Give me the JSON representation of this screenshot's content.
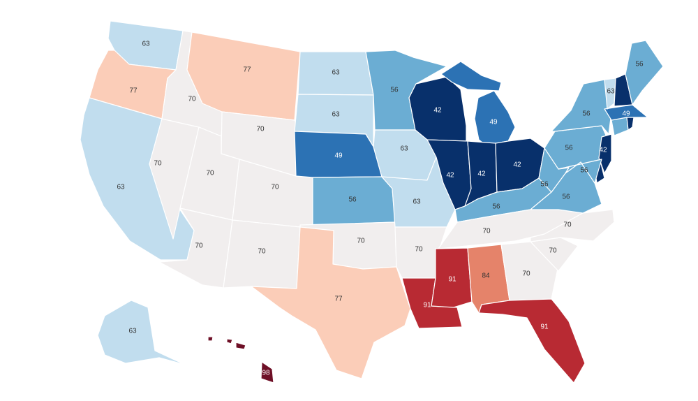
{
  "palette": {
    "42": "#08306b",
    "49": "#2c72b4",
    "56": "#6badd3",
    "63": "#c1ddee",
    "70": "#f1eeee",
    "77": "#fbcdb8",
    "84": "#e5836a",
    "91": "#b82a33",
    "98": "#6e0f26"
  },
  "light_text_color": "#ffffff",
  "dark_text_color": "#333333",
  "states": [
    {
      "id": "WA",
      "value": 63,
      "label": "63",
      "labeled": true
    },
    {
      "id": "OR",
      "value": 77,
      "label": "77",
      "labeled": true
    },
    {
      "id": "CA",
      "value": 63,
      "label": "63",
      "labeled": true
    },
    {
      "id": "NV",
      "value": 70,
      "label": "70",
      "labeled": true
    },
    {
      "id": "ID",
      "value": 70,
      "label": "70",
      "labeled": true
    },
    {
      "id": "MT",
      "value": 77,
      "label": "77",
      "labeled": true
    },
    {
      "id": "WY",
      "value": 70,
      "label": "70",
      "labeled": true
    },
    {
      "id": "UT",
      "value": 70,
      "label": "70",
      "labeled": true
    },
    {
      "id": "AZ",
      "value": 70,
      "label": "70",
      "labeled": true
    },
    {
      "id": "CO",
      "value": 70,
      "label": "70",
      "labeled": true
    },
    {
      "id": "NM",
      "value": 70,
      "label": "70",
      "labeled": true
    },
    {
      "id": "ND",
      "value": 63,
      "label": "63",
      "labeled": true
    },
    {
      "id": "SD",
      "value": 63,
      "label": "63",
      "labeled": true
    },
    {
      "id": "NE",
      "value": 49,
      "label": "49",
      "labeled": true
    },
    {
      "id": "KS",
      "value": 56,
      "label": "56",
      "labeled": true
    },
    {
      "id": "OK",
      "value": 70,
      "label": "70",
      "labeled": true
    },
    {
      "id": "TX",
      "value": 77,
      "label": "77",
      "labeled": true
    },
    {
      "id": "MN",
      "value": 56,
      "label": "56",
      "labeled": true
    },
    {
      "id": "IA",
      "value": 63,
      "label": "63",
      "labeled": true
    },
    {
      "id": "MO",
      "value": 63,
      "label": "63",
      "labeled": true
    },
    {
      "id": "AR",
      "value": 70,
      "label": "70",
      "labeled": true
    },
    {
      "id": "LA",
      "value": 91,
      "label": "91",
      "labeled": true
    },
    {
      "id": "WI",
      "value": 42,
      "label": "42",
      "labeled": true
    },
    {
      "id": "IL",
      "value": 42,
      "label": "42",
      "labeled": true
    },
    {
      "id": "MI",
      "value": 49,
      "label": "49",
      "labeled": true
    },
    {
      "id": "MI-UP",
      "value": 49,
      "label": "",
      "labeled": false
    },
    {
      "id": "IN",
      "value": 42,
      "label": "42",
      "labeled": true
    },
    {
      "id": "OH",
      "value": 42,
      "label": "42",
      "labeled": true
    },
    {
      "id": "KY",
      "value": 56,
      "label": "56",
      "labeled": true
    },
    {
      "id": "TN",
      "value": 70,
      "label": "70",
      "labeled": true
    },
    {
      "id": "MS",
      "value": 91,
      "label": "91",
      "labeled": true
    },
    {
      "id": "AL",
      "value": 84,
      "label": "84",
      "labeled": true
    },
    {
      "id": "GA",
      "value": 70,
      "label": "70",
      "labeled": true
    },
    {
      "id": "FL",
      "value": 91,
      "label": "91",
      "labeled": true
    },
    {
      "id": "SC",
      "value": 70,
      "label": "70",
      "labeled": true
    },
    {
      "id": "NC",
      "value": 70,
      "label": "70",
      "labeled": true
    },
    {
      "id": "VA",
      "value": 56,
      "label": "56",
      "labeled": true
    },
    {
      "id": "WV",
      "value": 56,
      "label": "56",
      "labeled": true
    },
    {
      "id": "PA",
      "value": 56,
      "label": "56",
      "labeled": true
    },
    {
      "id": "NY",
      "value": 56,
      "label": "56",
      "labeled": true
    },
    {
      "id": "NJ",
      "value": 42,
      "label": "42",
      "labeled": true
    },
    {
      "id": "DE",
      "value": 42,
      "label": "",
      "labeled": false
    },
    {
      "id": "MD",
      "value": 56,
      "label": "56",
      "labeled": true
    },
    {
      "id": "CT",
      "value": 56,
      "label": "",
      "labeled": false
    },
    {
      "id": "RI",
      "value": 42,
      "label": "",
      "labeled": false
    },
    {
      "id": "MA",
      "value": 49,
      "label": "49",
      "labeled": true
    },
    {
      "id": "VT",
      "value": 63,
      "label": "63",
      "labeled": true
    },
    {
      "id": "NH",
      "value": 42,
      "label": "",
      "labeled": false
    },
    {
      "id": "ME",
      "value": 56,
      "label": "56",
      "labeled": true
    },
    {
      "id": "AK",
      "value": 63,
      "label": "63",
      "labeled": true
    },
    {
      "id": "HI",
      "value": 98,
      "label": "98",
      "labeled": true
    }
  ]
}
